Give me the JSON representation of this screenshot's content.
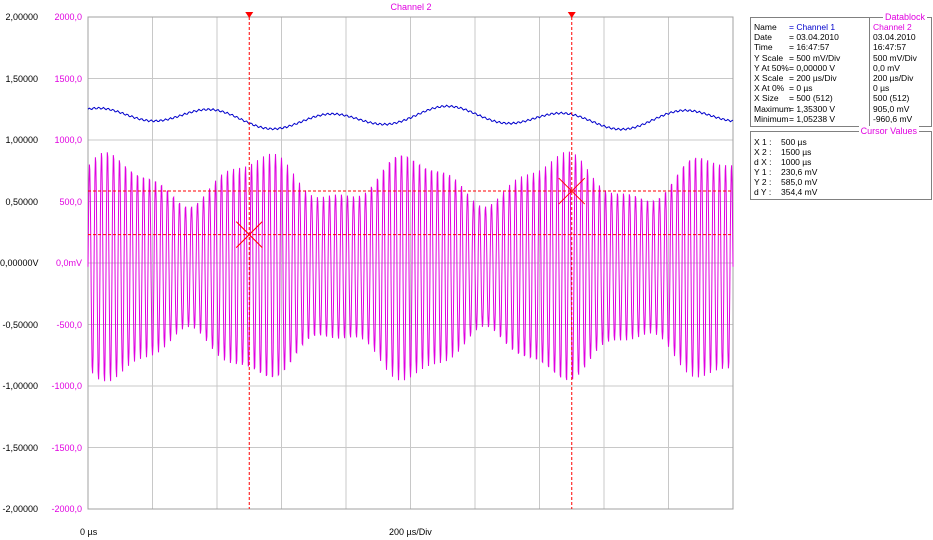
{
  "colors": {
    "channel1": "#0000cc",
    "channel2": "#e000e0",
    "grid": "#c8c8c8",
    "cursor": "#ff0000"
  },
  "plot": {
    "title": "Channel 2",
    "y_axis_channel1_labels": [
      "2,00000",
      "1,50000",
      "1,00000",
      "0,50000",
      "0,00000V",
      "-0,50000",
      "-1,00000",
      "-1,50000",
      "-2,00000"
    ],
    "y_axis_channel2_labels": [
      "2000,0",
      "1500,0",
      "1000,0",
      "500,0",
      "0,0mV",
      "-500,0",
      "-1000,0",
      "-1500,0",
      "-2000,0"
    ],
    "x_start_label": "0 µs",
    "x_div_label": "200 µs/Div",
    "divisions_x": 10,
    "divisions_y": 8,
    "time_range_us": [
      0,
      2000
    ],
    "cursor_x_us": [
      500,
      1500
    ],
    "cursor_y_mV": [
      230.6,
      585.0
    ]
  },
  "datablock": {
    "title": "Datablock",
    "rows": [
      {
        "label": "Name",
        "ch1": "= Channel 1",
        "ch2": "Channel 2"
      },
      {
        "label": "Date",
        "ch1": "= 03.04.2010",
        "ch2": "03.04.2010"
      },
      {
        "label": "Time",
        "ch1": "= 16:47:57",
        "ch2": "16:47:57"
      },
      {
        "label": "Y Scale",
        "ch1": "= 500       mV/Div",
        "ch2": "500   mV/Div"
      },
      {
        "label": "Y At 50%",
        "ch1": "=   0,00000 V",
        "ch2": "0,0 mV"
      },
      {
        "label": "X Scale",
        "ch1": "= 200       µs/Div",
        "ch2": "200   µs/Div"
      },
      {
        "label": "X At 0%",
        "ch1": "=      0       µs",
        "ch2": "0   µs"
      },
      {
        "label": "X Size",
        "ch1": "= 500 (512)",
        "ch2": "500 (512)"
      },
      {
        "label": "Maximum",
        "ch1": "=   1,35300 V",
        "ch2": "905,0 mV"
      },
      {
        "label": "Minimum",
        "ch1": "=   1,05238 V",
        "ch2": "-960,6 mV"
      }
    ]
  },
  "cursor_values": {
    "title": "Cursor Values",
    "rows": [
      {
        "label": "X 1 :",
        "value": "500    µs"
      },
      {
        "label": "X 2 :",
        "value": "1500   µs"
      },
      {
        "label": "d X :",
        "value": "1000   µs"
      },
      {
        "label": "Y 1 :",
        "value": "230,6 mV"
      },
      {
        "label": "Y 2 :",
        "value": "585,0 mV"
      },
      {
        "label": "d Y :",
        "value": "354,4 mV"
      }
    ]
  },
  "chart_data": {
    "type": "line",
    "title": "Channel 2",
    "xlabel": "200 µs/Div",
    "x_range": [
      0,
      2000
    ],
    "ylim_channel1_V": [
      -2,
      2
    ],
    "ylim_channel2_mV": [
      -2000,
      2000
    ],
    "series": [
      {
        "name": "Channel 1",
        "color": "#0000cc",
        "min": 1.05238,
        "max": 1.353,
        "unit": "V"
      },
      {
        "name": "Channel 2",
        "color": "#e000e0",
        "min": -960.6,
        "max": 905.0,
        "unit": "mV"
      }
    ]
  }
}
